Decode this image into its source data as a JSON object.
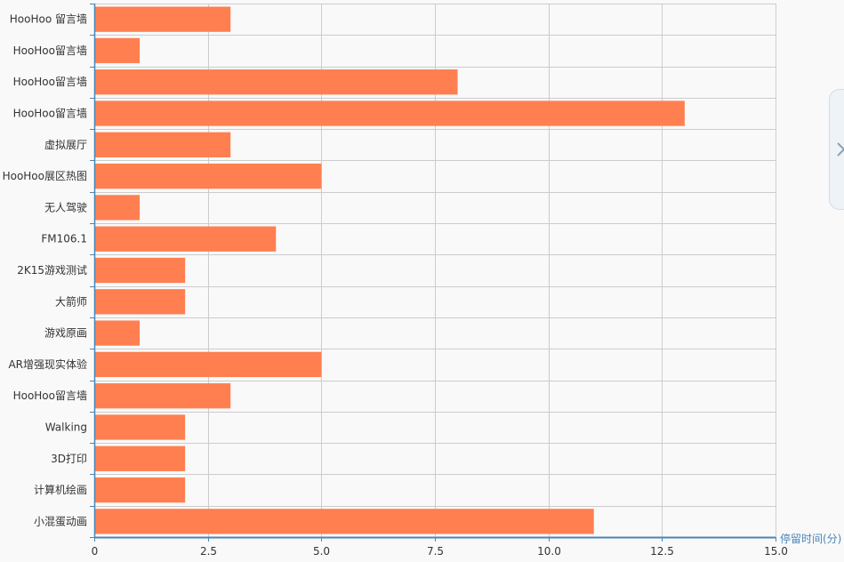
{
  "chart_data": {
    "type": "bar",
    "orientation": "horizontal",
    "categories": [
      "HooHoo 留言墙",
      "HooHoo留言墙",
      "HooHoo留言墙",
      "HooHoo留言墙",
      "虚拟展厅",
      "HooHoo展区热图",
      "无人驾驶",
      "FM106.1",
      "2K15游戏测试",
      "大箭师",
      "游戏原画",
      "AR增强现实体验",
      "HooHoo留言墙",
      "Walking",
      "3D打印",
      "计算机绘画",
      "小混蛋动画"
    ],
    "values": [
      3,
      1,
      8,
      13,
      3,
      5,
      1,
      4,
      2,
      2,
      1,
      5,
      3,
      2,
      2,
      2,
      11
    ],
    "xlabel": "停留时间(分)",
    "xlim": [
      0,
      15
    ],
    "x_ticks": [
      "0",
      "2.5",
      "5.0",
      "7.5",
      "10.0",
      "12.5",
      "15.0"
    ],
    "x_tick_values": [
      0,
      2.5,
      5,
      7.5,
      10,
      12.5,
      15
    ],
    "grid": true,
    "colors": {
      "bar": "#ff7f50",
      "grid": "#cccccc",
      "axis": "#4a86b8",
      "background": "#f9f9f9"
    }
  },
  "ui": {
    "side_toggle_icon": "chevron-right-icon"
  }
}
